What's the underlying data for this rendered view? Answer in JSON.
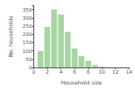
{
  "chart_data": {
    "type": "bar",
    "x": [
      1,
      2,
      3,
      4,
      5,
      6,
      7,
      8,
      9,
      10,
      11
    ],
    "values": [
      100,
      245,
      350,
      320,
      215,
      115,
      70,
      40,
      15,
      5,
      2
    ],
    "color": "#a8d5a2",
    "xlabel": "Household size",
    "ylabel": "No. households",
    "xlim": [
      0,
      14
    ],
    "ylim": [
      0,
      375
    ],
    "xticks": [
      0,
      2,
      4,
      6,
      8,
      10,
      12,
      14
    ],
    "yticks": [
      0,
      50,
      100,
      150,
      200,
      250,
      300,
      350
    ],
    "grid": false
  }
}
